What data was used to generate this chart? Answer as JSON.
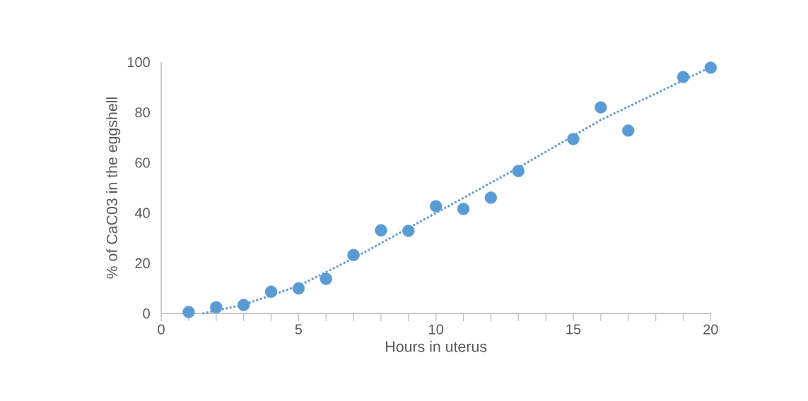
{
  "chart_data": {
    "type": "scatter",
    "xlabel": "Hours in uterus",
    "ylabel": "% of CaC03 in the eggshell",
    "xlim": [
      0,
      20
    ],
    "ylim": [
      0,
      100
    ],
    "xticks": [
      0,
      5,
      10,
      15,
      20
    ],
    "yticks": [
      0,
      20,
      40,
      60,
      80,
      100
    ],
    "series": [
      {
        "color": "#5b9bd5",
        "marker": "circle",
        "x": [
          1,
          2,
          3,
          4,
          5,
          6,
          7,
          8,
          9,
          10,
          11,
          12,
          13,
          15,
          16,
          17,
          19,
          20
        ],
        "values": [
          0.6,
          2.5,
          3.4,
          8.7,
          10,
          13.8,
          23.3,
          33.1,
          32.9,
          42.7,
          41.6,
          46.1,
          56.7,
          69.4,
          82,
          72.8,
          94.1,
          97.8
        ]
      },
      {
        "type": "line",
        "color": "#5b9bd5",
        "line_style": "dotted",
        "marker": "none",
        "x": [
          1.5,
          3,
          5,
          7,
          10,
          13,
          16,
          20
        ],
        "values": [
          0,
          3.5,
          11,
          22,
          40,
          58,
          77,
          98
        ]
      }
    ]
  }
}
